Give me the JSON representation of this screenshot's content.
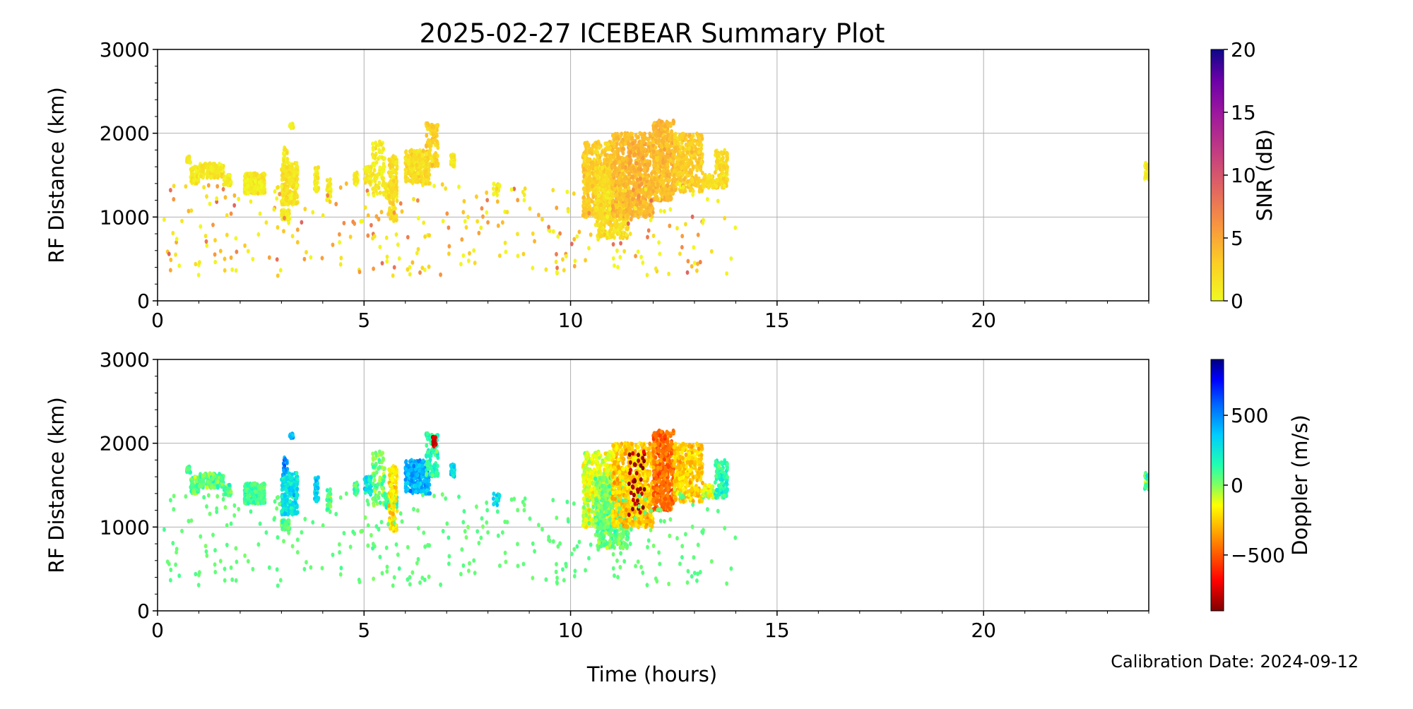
{
  "title": "2025-02-27 ICEBEAR Summary Plot",
  "xlabel": "Time (hours)",
  "footer": "Calibration Date: 2024-09-12",
  "chart_data": [
    {
      "type": "scatter",
      "name": "snr-panel",
      "ylabel": "RF Distance (km)",
      "xlim": [
        0,
        24
      ],
      "ylim": [
        0,
        3000
      ],
      "xticks": [
        "0",
        "5",
        "10",
        "15",
        "20"
      ],
      "yticks": [
        "0",
        "1000",
        "2000",
        "3000"
      ],
      "grid": true,
      "color_by": "snr",
      "colorbar": {
        "label": "SNR (dB)",
        "range": [
          0,
          20
        ],
        "ticks": [
          "0",
          "5",
          "10",
          "15",
          "20"
        ],
        "colormap": "plasma_r"
      }
    },
    {
      "type": "scatter",
      "name": "doppler-panel",
      "ylabel": "RF Distance (km)",
      "xlim": [
        0,
        24
      ],
      "ylim": [
        0,
        3000
      ],
      "xticks": [
        "0",
        "5",
        "10",
        "15",
        "20"
      ],
      "yticks": [
        "0",
        "1000",
        "2000",
        "3000"
      ],
      "grid": true,
      "color_by": "doppler",
      "colorbar": {
        "label": "Doppler (m/s)",
        "range": [
          -900,
          900
        ],
        "ticks": [
          "−500",
          "0",
          "500"
        ],
        "tick_values": [
          -500,
          0,
          500
        ],
        "colormap": "turbo_r"
      }
    }
  ],
  "clusters": [
    {
      "t": [
        0.7,
        0.8
      ],
      "r": [
        1650,
        1720
      ],
      "snr": 1,
      "doppler": 60,
      "n": 30
    },
    {
      "t": [
        0.8,
        1.0
      ],
      "r": [
        1400,
        1600
      ],
      "snr": 1,
      "doppler": 60,
      "n": 60
    },
    {
      "t": [
        1.0,
        1.6
      ],
      "r": [
        1470,
        1640
      ],
      "snr": 1.2,
      "doppler": 50,
      "n": 160
    },
    {
      "t": [
        1.6,
        1.8
      ],
      "r": [
        1380,
        1500
      ],
      "snr": 1,
      "doppler": 60,
      "n": 30
    },
    {
      "t": [
        2.1,
        2.6
      ],
      "r": [
        1280,
        1520
      ],
      "snr": 1,
      "doppler": 90,
      "n": 260
    },
    {
      "t": [
        3.0,
        3.4
      ],
      "r": [
        1150,
        1650
      ],
      "snr": 1.5,
      "doppler": 280,
      "n": 220
    },
    {
      "t": [
        3.0,
        3.2
      ],
      "r": [
        960,
        1080
      ],
      "snr": 1,
      "doppler": 60,
      "n": 40
    },
    {
      "t": [
        3.2,
        3.3
      ],
      "r": [
        2060,
        2120
      ],
      "snr": 1,
      "doppler": 420,
      "n": 15
    },
    {
      "t": [
        3.05,
        3.15
      ],
      "r": [
        1650,
        1830
      ],
      "snr": 1,
      "doppler": 500,
      "n": 20
    },
    {
      "t": [
        3.8,
        3.9
      ],
      "r": [
        1300,
        1600
      ],
      "snr": 1,
      "doppler": 350,
      "n": 40
    },
    {
      "t": [
        4.1,
        4.2
      ],
      "r": [
        1200,
        1450
      ],
      "snr": 1,
      "doppler": 60,
      "n": 30
    },
    {
      "t": [
        4.75,
        4.85
      ],
      "r": [
        1400,
        1550
      ],
      "snr": 1,
      "doppler": 100,
      "n": 20
    },
    {
      "t": [
        5.0,
        5.2
      ],
      "r": [
        1380,
        1600
      ],
      "snr": 1,
      "doppler": 250,
      "n": 40
    },
    {
      "t": [
        5.2,
        5.5
      ],
      "r": [
        1250,
        1900
      ],
      "snr": 1,
      "doppler": 20,
      "n": 80
    },
    {
      "t": [
        5.5,
        5.8
      ],
      "r": [
        1230,
        1400
      ],
      "snr": 1.2,
      "doppler": 150,
      "n": 60
    },
    {
      "t": [
        5.6,
        5.8
      ],
      "r": [
        950,
        1750
      ],
      "snr": 2,
      "doppler": -200,
      "n": 120
    },
    {
      "t": [
        6.0,
        6.6
      ],
      "r": [
        1400,
        1800
      ],
      "snr": 2,
      "doppler": 420,
      "n": 220
    },
    {
      "t": [
        6.5,
        6.8
      ],
      "r": [
        1600,
        2120
      ],
      "snr": 2.5,
      "doppler": 150,
      "n": 100
    },
    {
      "t": [
        6.65,
        6.75
      ],
      "r": [
        1950,
        2100
      ],
      "snr": 3,
      "doppler": -750,
      "n": 15
    },
    {
      "t": [
        7.1,
        7.2
      ],
      "r": [
        1600,
        1750
      ],
      "snr": 1,
      "doppler": 280,
      "n": 30
    },
    {
      "t": [
        8.1,
        8.3
      ],
      "r": [
        1250,
        1400
      ],
      "snr": 1,
      "doppler": 300,
      "n": 15
    },
    {
      "t": [
        10.3,
        11.0
      ],
      "r": [
        1000,
        1900
      ],
      "snr": 3,
      "doppler": -100,
      "n": 450
    },
    {
      "t": [
        10.6,
        11.4
      ],
      "r": [
        750,
        1600
      ],
      "snr": 2,
      "doppler": 40,
      "n": 450
    },
    {
      "t": [
        11.0,
        12.0
      ],
      "r": [
        1000,
        2000
      ],
      "snr": 4,
      "doppler": -250,
      "n": 700
    },
    {
      "t": [
        11.4,
        11.8
      ],
      "r": [
        1100,
        1950
      ],
      "snr": 5,
      "doppler": -850,
      "n": 40
    },
    {
      "t": [
        12.0,
        12.5
      ],
      "r": [
        1200,
        2150
      ],
      "snr": 4,
      "doppler": -450,
      "n": 450
    },
    {
      "t": [
        12.5,
        13.2
      ],
      "r": [
        1300,
        2000
      ],
      "snr": 3,
      "doppler": -250,
      "n": 350
    },
    {
      "t": [
        13.2,
        13.5
      ],
      "r": [
        1350,
        1500
      ],
      "snr": 2,
      "doppler": -100,
      "n": 60
    },
    {
      "t": [
        13.5,
        13.8
      ],
      "r": [
        1350,
        1800
      ],
      "snr": 2,
      "doppler": 150,
      "n": 120
    },
    {
      "t": [
        23.9,
        24.0
      ],
      "r": [
        1450,
        1650
      ],
      "snr": 1,
      "doppler": 80,
      "n": 30
    }
  ],
  "sparse": {
    "t": [
      0.1,
      14.0
    ],
    "r": [
      280,
      1400
    ],
    "snr": [
      0,
      9
    ],
    "doppler": 50,
    "n": 320
  }
}
